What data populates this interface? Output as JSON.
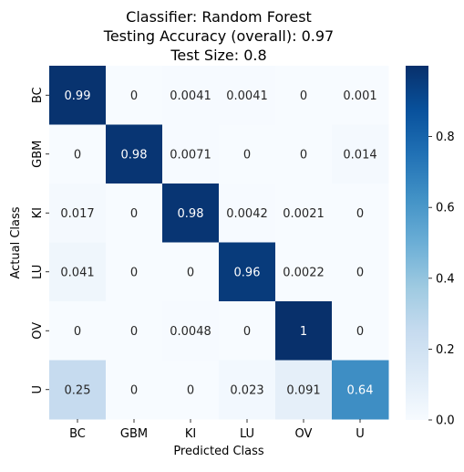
{
  "chart_data": {
    "type": "heatmap",
    "title_lines": [
      "Classifier: Random Forest",
      "Testing Accuracy (overall): 0.97",
      "Test Size: 0.8"
    ],
    "xlabel": "Predicted Class",
    "ylabel": "Actual Class",
    "x_categories": [
      "BC",
      "GBM",
      "KI",
      "LU",
      "OV",
      "U"
    ],
    "y_categories": [
      "BC",
      "GBM",
      "KI",
      "LU",
      "OV",
      "U"
    ],
    "values": [
      [
        0.99,
        0,
        0.0041,
        0.0041,
        0,
        0.001
      ],
      [
        0,
        0.98,
        0.0071,
        0,
        0,
        0.014
      ],
      [
        0.017,
        0,
        0.98,
        0.0042,
        0.0021,
        0
      ],
      [
        0.041,
        0,
        0,
        0.96,
        0.0022,
        0
      ],
      [
        0,
        0,
        0.0048,
        0,
        1,
        0
      ],
      [
        0.25,
        0,
        0,
        0.023,
        0.091,
        0.64
      ]
    ],
    "cell_labels": [
      [
        "0.99",
        "0",
        "0.0041",
        "0.0041",
        "0",
        "0.001"
      ],
      [
        "0",
        "0.98",
        "0.0071",
        "0",
        "0",
        "0.014"
      ],
      [
        "0.017",
        "0",
        "0.98",
        "0.0042",
        "0.0021",
        "0"
      ],
      [
        "0.041",
        "0",
        "0",
        "0.96",
        "0.0022",
        "0"
      ],
      [
        "0",
        "0",
        "0.0048",
        "0",
        "1",
        "0"
      ],
      [
        "0.25",
        "0",
        "0",
        "0.023",
        "0.091",
        "0.64"
      ]
    ],
    "colormap": "Blues",
    "colormap_stops": [
      "#f7fbff",
      "#deebf7",
      "#c6dbef",
      "#9ecae1",
      "#6baed6",
      "#4292c6",
      "#2171b5",
      "#08519c",
      "#08306b"
    ],
    "value_range": [
      0,
      1
    ],
    "colorbar_ticks": [
      0.0,
      0.2,
      0.4,
      0.6,
      0.8
    ],
    "colorbar_tick_labels": [
      "0.0",
      "0.2",
      "0.4",
      "0.6",
      "0.8"
    ],
    "annotation_color_light": "#ffffff",
    "annotation_color_dark": "#262626"
  }
}
